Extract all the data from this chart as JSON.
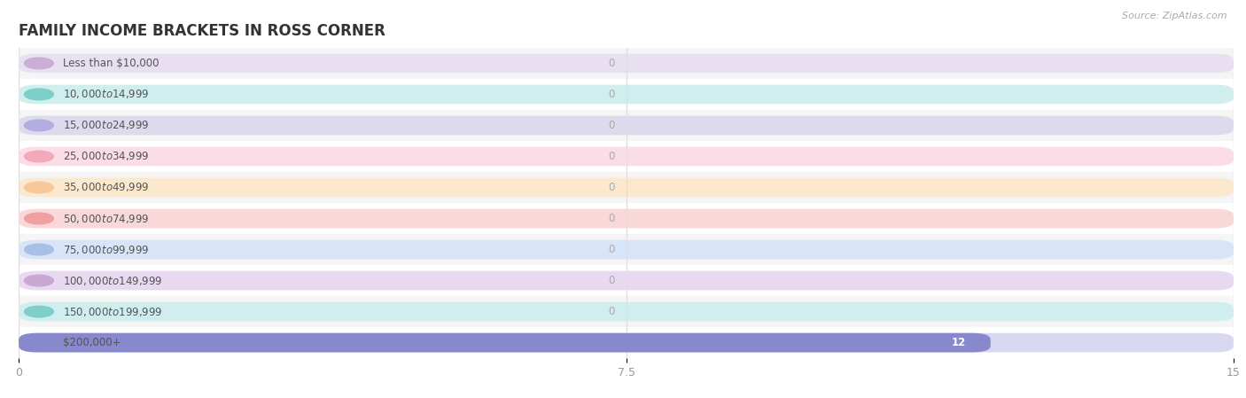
{
  "title": "FAMILY INCOME BRACKETS IN ROSS CORNER",
  "source": "Source: ZipAtlas.com",
  "categories": [
    "Less than $10,000",
    "$10,000 to $14,999",
    "$15,000 to $24,999",
    "$25,000 to $34,999",
    "$35,000 to $49,999",
    "$50,000 to $74,999",
    "$75,000 to $99,999",
    "$100,000 to $149,999",
    "$150,000 to $199,999",
    "$200,000+"
  ],
  "values": [
    0,
    0,
    0,
    0,
    0,
    0,
    0,
    0,
    0,
    12
  ],
  "bar_colors": [
    "#c9afd4",
    "#7ececa",
    "#b3aee0",
    "#f4a8bc",
    "#f7c89a",
    "#f0a0a0",
    "#a8bfe8",
    "#c9a8d4",
    "#7ececa",
    "#8888cc"
  ],
  "bar_bg_colors": [
    "#e8dff0",
    "#d0eeee",
    "#dddaee",
    "#fadde6",
    "#fce8cc",
    "#f8d8d8",
    "#d8e4f8",
    "#e8d8f0",
    "#d0eeee",
    "#d8d8f0"
  ],
  "xlim": [
    0,
    15
  ],
  "xticks": [
    0,
    7.5,
    15
  ],
  "background_color": "#ffffff",
  "bar_height": 0.62,
  "value_label_color": "#aaaaaa",
  "title_color": "#333333",
  "label_color": "#555555",
  "bar_label_color_12": "#ffffff",
  "grid_color": "#e0e0e0",
  "row_bg_even": "#f5f5f5",
  "row_bg_odd": "#ffffff"
}
